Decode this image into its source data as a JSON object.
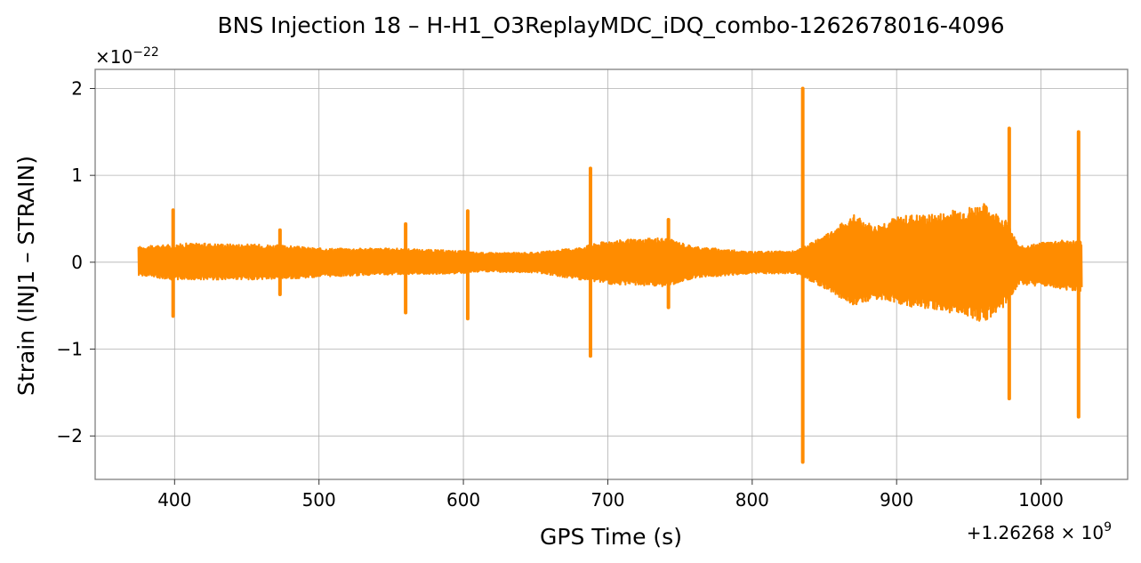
{
  "chart_data": {
    "type": "line",
    "title": "BNS Injection 18 – H-H1_O3ReplayMDC_iDQ_combo-1262678016-4096",
    "xlabel": "GPS Time (s)",
    "ylabel": "Strain (INJ1 – STRAIN)",
    "x_offset_label": "+1.26268 × 10",
    "x_offset_exp": "9",
    "y_scale_label": "×10",
    "y_scale_exp": "−22",
    "xlim": [
      345,
      1060
    ],
    "ylim": [
      -2.5,
      2.22
    ],
    "x_ticks": [
      400,
      500,
      600,
      700,
      800,
      900,
      1000
    ],
    "x_tick_labels": [
      "400",
      "500",
      "600",
      "700",
      "800",
      "900",
      "1000"
    ],
    "y_ticks": [
      -2,
      -1,
      0,
      1,
      2
    ],
    "y_tick_labels": [
      "−2",
      "−1",
      "0",
      "1",
      "2"
    ],
    "grid": true,
    "series": [
      {
        "color": "#ff8c00",
        "x_start": 375,
        "x_end": 1028,
        "envelope": [
          {
            "x": 375,
            "hi": 0.18,
            "lo": -0.15
          },
          {
            "x": 397,
            "hi": 0.2,
            "lo": -0.2
          },
          {
            "x": 410,
            "hi": 0.22,
            "lo": -0.2
          },
          {
            "x": 470,
            "hi": 0.2,
            "lo": -0.2
          },
          {
            "x": 500,
            "hi": 0.16,
            "lo": -0.17
          },
          {
            "x": 550,
            "hi": 0.16,
            "lo": -0.14
          },
          {
            "x": 600,
            "hi": 0.13,
            "lo": -0.13
          },
          {
            "x": 610,
            "hi": 0.11,
            "lo": -0.11
          },
          {
            "x": 650,
            "hi": 0.11,
            "lo": -0.12
          },
          {
            "x": 680,
            "hi": 0.17,
            "lo": -0.2
          },
          {
            "x": 700,
            "hi": 0.25,
            "lo": -0.25
          },
          {
            "x": 740,
            "hi": 0.28,
            "lo": -0.28
          },
          {
            "x": 760,
            "hi": 0.18,
            "lo": -0.18
          },
          {
            "x": 800,
            "hi": 0.12,
            "lo": -0.13
          },
          {
            "x": 830,
            "hi": 0.13,
            "lo": -0.13
          },
          {
            "x": 850,
            "hi": 0.3,
            "lo": -0.3
          },
          {
            "x": 870,
            "hi": 0.55,
            "lo": -0.5
          },
          {
            "x": 885,
            "hi": 0.42,
            "lo": -0.42
          },
          {
            "x": 895,
            "hi": 0.5,
            "lo": -0.45
          },
          {
            "x": 910,
            "hi": 0.55,
            "lo": -0.52
          },
          {
            "x": 925,
            "hi": 0.55,
            "lo": -0.55
          },
          {
            "x": 945,
            "hi": 0.62,
            "lo": -0.6
          },
          {
            "x": 960,
            "hi": 0.68,
            "lo": -0.7
          },
          {
            "x": 975,
            "hi": 0.5,
            "lo": -0.5
          },
          {
            "x": 985,
            "hi": 0.18,
            "lo": -0.25
          },
          {
            "x": 1010,
            "hi": 0.25,
            "lo": -0.3
          },
          {
            "x": 1028,
            "hi": 0.25,
            "lo": -0.35
          }
        ],
        "spikes": [
          {
            "x": 399,
            "hi": 0.6,
            "lo": -0.62
          },
          {
            "x": 473,
            "hi": 0.37,
            "lo": -0.37
          },
          {
            "x": 560,
            "hi": 0.44,
            "lo": -0.58
          },
          {
            "x": 603,
            "hi": 0.59,
            "lo": -0.65
          },
          {
            "x": 688,
            "hi": 1.08,
            "lo": -1.08
          },
          {
            "x": 742,
            "hi": 0.49,
            "lo": -0.52
          },
          {
            "x": 835,
            "hi": 2.0,
            "lo": -2.3
          },
          {
            "x": 978,
            "hi": 1.54,
            "lo": -1.57
          },
          {
            "x": 1026,
            "hi": 1.5,
            "lo": -1.78
          }
        ]
      }
    ]
  }
}
